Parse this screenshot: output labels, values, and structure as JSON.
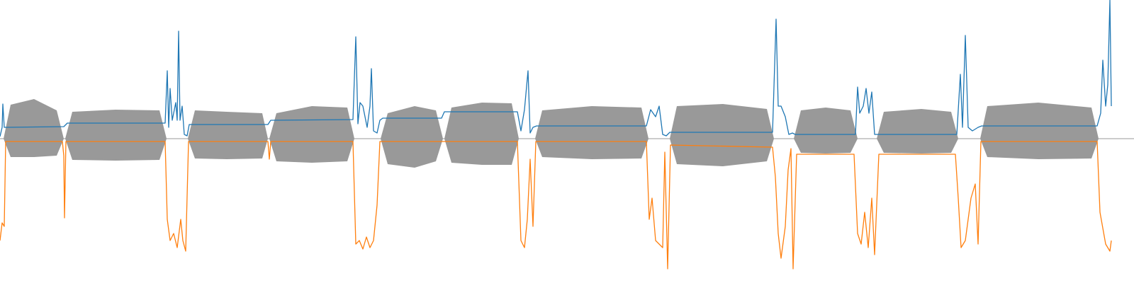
{
  "chart_data": {
    "type": "line",
    "xlim": [
      0,
      1600
    ],
    "ylim": [
      -204,
      196
    ],
    "envelope": {
      "color": "#999999",
      "segments": [
        {
          "x": [
            5,
            15,
            48,
            80,
            90
          ],
          "upper": [
            0,
            48,
            56,
            40,
            0
          ],
          "lower": [
            0,
            -26,
            -26,
            -24,
            0
          ]
        },
        {
          "x": [
            92,
            102,
            163,
            225,
            235
          ],
          "upper": [
            0,
            38,
            41,
            40,
            0
          ],
          "lower": [
            0,
            -30,
            -31,
            -30,
            0
          ]
        },
        {
          "x": [
            265,
            275,
            320,
            370,
            378
          ],
          "upper": [
            0,
            40,
            38,
            36,
            0
          ],
          "lower": [
            0,
            -28,
            -29,
            -28,
            0
          ]
        },
        {
          "x": [
            380,
            390,
            440,
            490,
            500
          ],
          "upper": [
            0,
            36,
            46,
            44,
            0
          ],
          "lower": [
            0,
            -32,
            -34,
            -32,
            0
          ]
        },
        {
          "x": [
            537,
            547,
            585,
            615,
            625
          ],
          "upper": [
            0,
            36,
            46,
            40,
            0
          ],
          "lower": [
            0,
            -36,
            -41,
            -32,
            0
          ]
        },
        {
          "x": [
            627,
            637,
            680,
            722,
            732
          ],
          "upper": [
            0,
            44,
            51,
            50,
            0
          ],
          "lower": [
            0,
            -34,
            -37,
            -37,
            0
          ]
        },
        {
          "x": [
            755,
            765,
            835,
            905,
            915
          ],
          "upper": [
            0,
            40,
            46,
            44,
            0
          ],
          "lower": [
            0,
            -26,
            -29,
            -28,
            0
          ]
        },
        {
          "x": [
            945,
            955,
            1020,
            1082,
            1092
          ],
          "upper": [
            0,
            46,
            49,
            42,
            0
          ],
          "lower": [
            0,
            -36,
            -39,
            -32,
            0
          ]
        },
        {
          "x": [
            1120,
            1130,
            1165,
            1200,
            1210
          ],
          "upper": [
            0,
            40,
            44,
            40,
            0
          ],
          "lower": [
            0,
            -20,
            -21,
            -20,
            0
          ]
        },
        {
          "x": [
            1237,
            1247,
            1300,
            1342,
            1352
          ],
          "upper": [
            0,
            38,
            42,
            38,
            0
          ],
          "lower": [
            0,
            -20,
            -21,
            -20,
            0
          ]
        },
        {
          "x": [
            1383,
            1393,
            1465,
            1540,
            1550
          ],
          "upper": [
            0,
            46,
            51,
            44,
            0
          ],
          "lower": [
            0,
            -26,
            -29,
            -28,
            0
          ]
        }
      ]
    },
    "series": [
      {
        "color": "#1f77b4",
        "x": [
          0,
          3,
          4,
          6,
          90,
          95,
          233,
          236,
          238,
          240,
          243,
          248,
          250,
          252,
          254,
          257,
          260,
          264,
          267,
          378,
          382,
          498,
          502,
          505,
          508,
          512,
          518,
          522,
          524,
          527,
          532,
          536,
          540,
          623,
          627,
          730,
          735,
          740,
          745,
          748,
          752,
          757,
          912,
          918,
          925,
          930,
          935,
          940,
          945,
          1090,
          1095,
          1098,
          1102,
          1108,
          1113,
          1118,
          1122,
          1207,
          1210,
          1213,
          1218,
          1222,
          1226,
          1230,
          1234,
          1238,
          1350,
          1355,
          1358,
          1362,
          1366,
          1372,
          1380,
          1385,
          1548,
          1553,
          1556,
          1560,
          1563,
          1566,
          1568
        ],
        "values": [
          3,
          16,
          49,
          16,
          17,
          22,
          22,
          96,
          16,
          71,
          26,
          51,
          26,
          152,
          26,
          46,
          6,
          4,
          20,
          20,
          26,
          27,
          144,
          21,
          51,
          46,
          16,
          46,
          99,
          11,
          8,
          26,
          29,
          29,
          38,
          38,
          11,
          41,
          96,
          8,
          16,
          18,
          18,
          41,
          31,
          46,
          6,
          4,
          9,
          9,
          169,
          46,
          46,
          31,
          6,
          8,
          6,
          6,
          73,
          36,
          46,
          71,
          36,
          66,
          6,
          6,
          6,
          91,
          16,
          146,
          16,
          11,
          16,
          18,
          18,
          36,
          111,
          46,
          76,
          196,
          46
        ]
      },
      {
        "color": "#ff7f0e",
        "x": [
          0,
          3,
          6,
          8,
          88,
          90,
          91,
          93,
          233,
          236,
          240,
          245,
          250,
          255,
          258,
          262,
          266,
          378,
          380,
          382,
          498,
          502,
          507,
          512,
          517,
          522,
          527,
          532,
          536,
          730,
          735,
          740,
          744,
          748,
          752,
          756,
          912,
          916,
          920,
          925,
          930,
          935,
          938,
          942,
          946,
          1090,
          1094,
          1098,
          1102,
          1108,
          1112,
          1116,
          1119,
          1124,
          1205,
          1210,
          1215,
          1220,
          1225,
          1230,
          1234,
          1240,
          1348,
          1352,
          1356,
          1362,
          1370,
          1376,
          1380,
          1384,
          1548,
          1552,
          1560,
          1566,
          1568
        ],
        "values": [
          -144,
          -119,
          -124,
          -4,
          -4,
          -24,
          -112,
          -4,
          -4,
          -114,
          -144,
          -134,
          -154,
          -114,
          -144,
          -159,
          -4,
          -4,
          -29,
          -4,
          -4,
          -149,
          -144,
          -156,
          -139,
          -154,
          -144,
          -94,
          -4,
          -4,
          -144,
          -154,
          -114,
          -29,
          -124,
          -4,
          -4,
          -114,
          -84,
          -144,
          -149,
          -154,
          -19,
          -184,
          -9,
          -12,
          -54,
          -134,
          -169,
          -124,
          -44,
          -14,
          -184,
          -22,
          -22,
          -134,
          -149,
          -104,
          -154,
          -84,
          -164,
          -22,
          -22,
          -84,
          -154,
          -144,
          -84,
          -64,
          -149,
          -4,
          -4,
          -104,
          -149,
          -159,
          -144
        ]
      }
    ]
  }
}
